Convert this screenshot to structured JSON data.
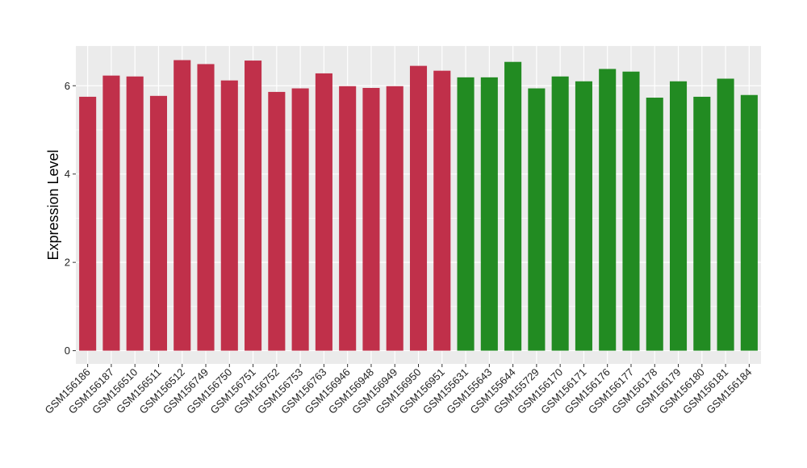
{
  "chart_data": {
    "type": "bar",
    "title": "",
    "xlabel": "",
    "ylabel": "Expression Level",
    "ylim": [
      -0.3,
      6.9
    ],
    "yticks": [
      0,
      2,
      4,
      6
    ],
    "grid": true,
    "legend": "none",
    "background": "#EBEBEB",
    "gridline_color": "#FFFFFF",
    "group_colors": [
      "#C0304A",
      "#228B22"
    ],
    "categories": [
      "GSM156186",
      "GSM156187",
      "GSM156510",
      "GSM156511",
      "GSM156512",
      "GSM156749",
      "GSM156750",
      "GSM156751",
      "GSM156752",
      "GSM156753",
      "GSM156763",
      "GSM156946",
      "GSM156948",
      "GSM156949",
      "GSM156950",
      "GSM156951",
      "GSM155631",
      "GSM155643",
      "GSM155644",
      "GSM155729",
      "GSM156170",
      "GSM156171",
      "GSM156176",
      "GSM156177",
      "GSM156178",
      "GSM156179",
      "GSM156180",
      "GSM156181",
      "GSM156184"
    ],
    "values": [
      5.75,
      6.23,
      6.21,
      5.77,
      6.58,
      6.49,
      6.12,
      6.57,
      5.86,
      5.94,
      6.28,
      5.99,
      5.95,
      5.99,
      6.45,
      6.34,
      6.19,
      6.19,
      6.54,
      5.94,
      6.21,
      6.1,
      6.38,
      6.32,
      5.73,
      6.1,
      5.75,
      6.16,
      5.79
    ],
    "groups": [
      0,
      0,
      0,
      0,
      0,
      0,
      0,
      0,
      0,
      0,
      0,
      0,
      0,
      0,
      0,
      0,
      1,
      1,
      1,
      1,
      1,
      1,
      1,
      1,
      1,
      1,
      1,
      1,
      1
    ]
  }
}
